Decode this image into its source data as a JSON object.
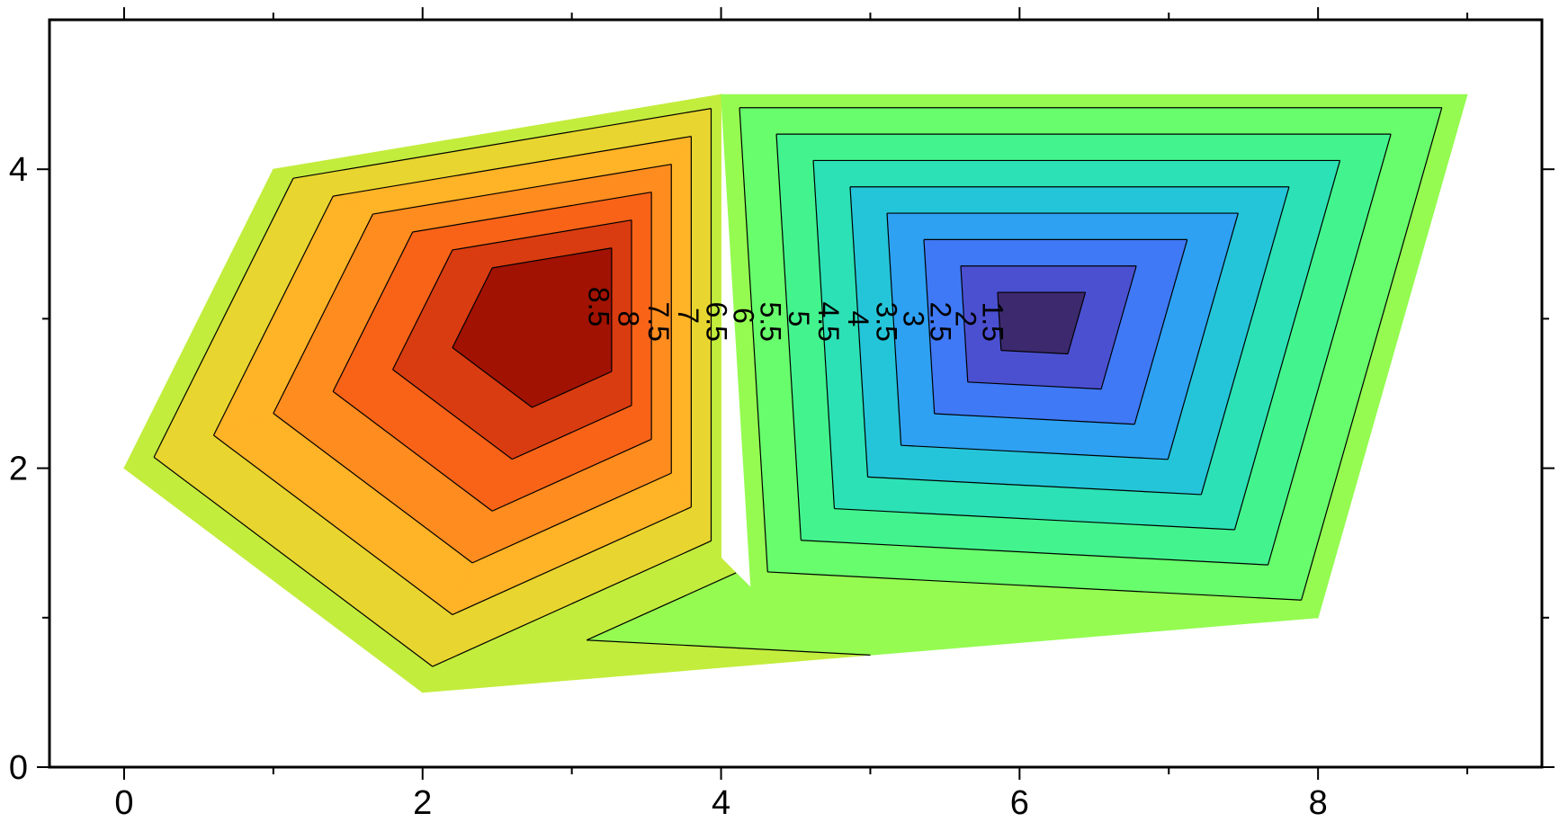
{
  "chart_data": {
    "type": "contour",
    "title": "",
    "xlabel": "",
    "ylabel": "",
    "xlim": [
      -0.5,
      9.5
    ],
    "ylim": [
      0,
      5
    ],
    "grid": false,
    "colormap": "turbo",
    "x_ticks": [
      {
        "value": 0,
        "label": "0"
      },
      {
        "value": 2,
        "label": "2"
      },
      {
        "value": 4,
        "label": "4"
      },
      {
        "value": 6,
        "label": "6"
      },
      {
        "value": 8,
        "label": "8"
      }
    ],
    "y_ticks": [
      {
        "value": 0,
        "label": "0"
      },
      {
        "value": 2,
        "label": "2"
      },
      {
        "value": 4,
        "label": "4"
      }
    ],
    "x_minor_ticks": [
      1,
      3,
      5,
      7,
      9
    ],
    "y_minor_ticks": [
      1,
      3
    ],
    "points": [
      {
        "x": 0,
        "y": 2,
        "z": 5.75
      },
      {
        "x": 1,
        "y": 4,
        "z": 5.75
      },
      {
        "x": 4,
        "y": 4.5,
        "z": 5.75
      },
      {
        "x": 4,
        "y": 1.4,
        "z": 5.75
      },
      {
        "x": 2,
        "y": 0.5,
        "z": 5.75
      },
      {
        "x": 3,
        "y": 3.1,
        "z": 9.5
      },
      {
        "x": 4.2,
        "y": 1.2,
        "z": 5.25
      },
      {
        "x": 4,
        "y": 4.5,
        "z": 5.25
      },
      {
        "x": 9,
        "y": 4.5,
        "z": 5.25
      },
      {
        "x": 8,
        "y": 1,
        "z": 5.25
      },
      {
        "x": 6.1,
        "y": 3.0,
        "z": 1.0
      }
    ],
    "triangles": [
      [
        0,
        1,
        5
      ],
      [
        1,
        2,
        5
      ],
      [
        2,
        3,
        5
      ],
      [
        3,
        4,
        5
      ],
      [
        4,
        0,
        5
      ],
      [
        6,
        7,
        10
      ],
      [
        7,
        8,
        10
      ],
      [
        8,
        9,
        10
      ],
      [
        9,
        6,
        10
      ],
      [
        4,
        6,
        9
      ],
      [
        4,
        3,
        6
      ]
    ],
    "contour_levels": [
      1.5,
      2,
      2.5,
      3,
      3.5,
      4,
      4.5,
      5,
      5.5,
      6,
      6.5,
      7,
      7.5,
      8,
      8.5
    ],
    "contour_labels": [
      {
        "text": "8.5",
        "x": 3.18,
        "y": 3.08
      },
      {
        "text": "8",
        "x": 3.38,
        "y": 3.0
      },
      {
        "text": "7.5",
        "x": 3.58,
        "y": 2.98
      },
      {
        "text": "7",
        "x": 3.78,
        "y": 3.02
      },
      {
        "text": "6.5",
        "x": 3.97,
        "y": 2.98
      },
      {
        "text": "6",
        "x": 4.15,
        "y": 3.02
      },
      {
        "text": "5.5",
        "x": 4.33,
        "y": 2.98
      },
      {
        "text": "5",
        "x": 4.52,
        "y": 3.0
      },
      {
        "text": "4.5",
        "x": 4.72,
        "y": 2.98
      },
      {
        "text": "4",
        "x": 4.92,
        "y": 3.0
      },
      {
        "text": "3.5",
        "x": 5.11,
        "y": 2.98
      },
      {
        "text": "3",
        "x": 5.29,
        "y": 3.0
      },
      {
        "text": "2.5",
        "x": 5.47,
        "y": 2.98
      },
      {
        "text": "2",
        "x": 5.64,
        "y": 3.0
      },
      {
        "text": "1.5",
        "x": 5.82,
        "y": 2.98
      }
    ]
  }
}
